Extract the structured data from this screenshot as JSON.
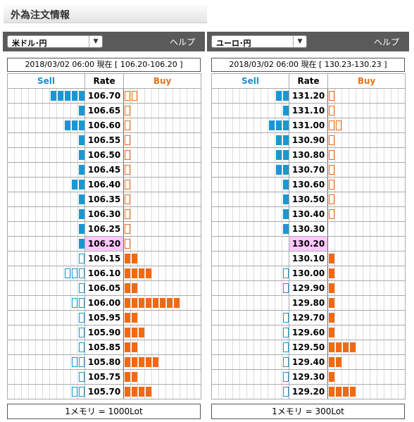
{
  "page_title": "外為注文情報",
  "panels": [
    {
      "pair": "米ドル･円",
      "help": "ヘルプ",
      "timestamp": "2018/03/02  06:00 現在 [ 106.20-106.20 ]",
      "headers": {
        "sell": "Sell",
        "rate": "Rate",
        "buy": "Buy"
      },
      "current_rate": "106.20",
      "footer": "1メモリ = 1000Lot",
      "rows": [
        {
          "rate": "106.70",
          "sell": 5,
          "sell_partial": false,
          "buy": 0,
          "buy_partial": true,
          "buy_partial_count": 2
        },
        {
          "rate": "106.65",
          "sell": 1,
          "sell_partial": false,
          "buy": 0,
          "buy_partial": true,
          "buy_partial_count": 1
        },
        {
          "rate": "106.60",
          "sell": 3,
          "sell_partial": false,
          "buy": 0,
          "buy_partial": true,
          "buy_partial_count": 1
        },
        {
          "rate": "106.55",
          "sell": 1,
          "sell_partial": false,
          "buy": 0,
          "buy_partial": true,
          "buy_partial_count": 1
        },
        {
          "rate": "106.50",
          "sell": 1,
          "sell_partial": false,
          "buy": 0,
          "buy_partial": true,
          "buy_partial_count": 1
        },
        {
          "rate": "106.45",
          "sell": 1,
          "sell_partial": false,
          "buy": 0,
          "buy_partial": true,
          "buy_partial_count": 1
        },
        {
          "rate": "106.40",
          "sell": 2,
          "sell_partial": false,
          "buy": 0,
          "buy_partial": true,
          "buy_partial_count": 1
        },
        {
          "rate": "106.35",
          "sell": 1,
          "sell_partial": false,
          "buy": 0,
          "buy_partial": true,
          "buy_partial_count": 1
        },
        {
          "rate": "106.30",
          "sell": 1,
          "sell_partial": false,
          "buy": 0,
          "buy_partial": true,
          "buy_partial_count": 1
        },
        {
          "rate": "106.25",
          "sell": 1,
          "sell_partial": false,
          "buy": 0,
          "buy_partial": true,
          "buy_partial_count": 1
        },
        {
          "rate": "106.20",
          "sell": 1,
          "sell_partial": false,
          "buy": 0,
          "buy_partial": true,
          "buy_partial_count": 1
        },
        {
          "rate": "106.15",
          "sell": 0,
          "sell_partial": true,
          "sell_partial_count": 1,
          "buy": 2,
          "buy_partial": false
        },
        {
          "rate": "106.10",
          "sell": 0,
          "sell_partial": true,
          "sell_partial_count": 3,
          "buy": 4,
          "buy_partial": false
        },
        {
          "rate": "106.05",
          "sell": 0,
          "sell_partial": true,
          "sell_partial_count": 1,
          "buy": 2,
          "buy_partial": false
        },
        {
          "rate": "106.00",
          "sell": 0,
          "sell_partial": true,
          "sell_partial_count": 2,
          "buy": 8,
          "buy_partial": false
        },
        {
          "rate": "105.95",
          "sell": 0,
          "sell_partial": true,
          "sell_partial_count": 1,
          "buy": 2,
          "buy_partial": false
        },
        {
          "rate": "105.90",
          "sell": 0,
          "sell_partial": true,
          "sell_partial_count": 1,
          "buy": 3,
          "buy_partial": false
        },
        {
          "rate": "105.85",
          "sell": 0,
          "sell_partial": true,
          "sell_partial_count": 1,
          "buy": 2,
          "buy_partial": false
        },
        {
          "rate": "105.80",
          "sell": 0,
          "sell_partial": true,
          "sell_partial_count": 2,
          "buy": 5,
          "buy_partial": false
        },
        {
          "rate": "105.75",
          "sell": 0,
          "sell_partial": true,
          "sell_partial_count": 1,
          "buy": 2,
          "buy_partial": false
        },
        {
          "rate": "105.70",
          "sell": 0,
          "sell_partial": true,
          "sell_partial_count": 2,
          "buy": 4,
          "buy_partial": false
        }
      ]
    },
    {
      "pair": "ユーロ･円",
      "help": "ヘルプ",
      "timestamp": "2018/03/02  06:00 現在 [ 130.23-130.23 ]",
      "headers": {
        "sell": "Sell",
        "rate": "Rate",
        "buy": "Buy"
      },
      "current_rate": "130.20",
      "footer": "1メモリ = 300Lot",
      "rows": [
        {
          "rate": "131.20",
          "sell": 2,
          "sell_partial": false,
          "buy": 0,
          "buy_partial": true,
          "buy_partial_count": 1
        },
        {
          "rate": "131.10",
          "sell": 1,
          "sell_partial": false,
          "buy": 0,
          "buy_partial": true,
          "buy_partial_count": 1
        },
        {
          "rate": "131.00",
          "sell": 3,
          "sell_partial": false,
          "buy": 0,
          "buy_partial": true,
          "buy_partial_count": 2
        },
        {
          "rate": "130.90",
          "sell": 2,
          "sell_partial": false,
          "buy": 0,
          "buy_partial": true,
          "buy_partial_count": 1
        },
        {
          "rate": "130.80",
          "sell": 2,
          "sell_partial": false,
          "buy": 0,
          "buy_partial": true,
          "buy_partial_count": 1
        },
        {
          "rate": "130.70",
          "sell": 2,
          "sell_partial": false,
          "buy": 0,
          "buy_partial": true,
          "buy_partial_count": 1
        },
        {
          "rate": "130.60",
          "sell": 1,
          "sell_partial": false,
          "buy": 0,
          "buy_partial": true,
          "buy_partial_count": 1
        },
        {
          "rate": "130.50",
          "sell": 1,
          "sell_partial": false,
          "buy": 0,
          "buy_partial": true,
          "buy_partial_count": 1
        },
        {
          "rate": "130.40",
          "sell": 1,
          "sell_partial": false,
          "buy": 0,
          "buy_partial": true,
          "buy_partial_count": 1
        },
        {
          "rate": "130.30",
          "sell": 1,
          "sell_partial": false,
          "buy": 0,
          "buy_partial": false
        },
        {
          "rate": "130.20",
          "sell": 0,
          "sell_partial": false,
          "buy": 0,
          "buy_partial": false
        },
        {
          "rate": "130.10",
          "sell": 0,
          "sell_partial": false,
          "buy": 1,
          "buy_partial": false
        },
        {
          "rate": "130.00",
          "sell": 0,
          "sell_partial": true,
          "sell_partial_count": 1,
          "buy": 1,
          "buy_partial": false
        },
        {
          "rate": "129.90",
          "sell": 0,
          "sell_partial": true,
          "sell_partial_count": 1,
          "buy": 1,
          "buy_partial": false
        },
        {
          "rate": "129.80",
          "sell": 0,
          "sell_partial": false,
          "buy": 1,
          "buy_partial": false
        },
        {
          "rate": "129.70",
          "sell": 0,
          "sell_partial": true,
          "sell_partial_count": 1,
          "buy": 1,
          "buy_partial": false
        },
        {
          "rate": "129.60",
          "sell": 0,
          "sell_partial": true,
          "sell_partial_count": 1,
          "buy": 1,
          "buy_partial": false
        },
        {
          "rate": "129.50",
          "sell": 0,
          "sell_partial": true,
          "sell_partial_count": 1,
          "buy": 4,
          "buy_partial": false
        },
        {
          "rate": "129.40",
          "sell": 0,
          "sell_partial": true,
          "sell_partial_count": 1,
          "buy": 2,
          "buy_partial": false
        },
        {
          "rate": "129.30",
          "sell": 0,
          "sell_partial": true,
          "sell_partial_count": 1,
          "buy": 1,
          "buy_partial": false
        },
        {
          "rate": "129.20",
          "sell": 0,
          "sell_partial": true,
          "sell_partial_count": 1,
          "buy": 4,
          "buy_partial": false
        }
      ]
    }
  ]
}
